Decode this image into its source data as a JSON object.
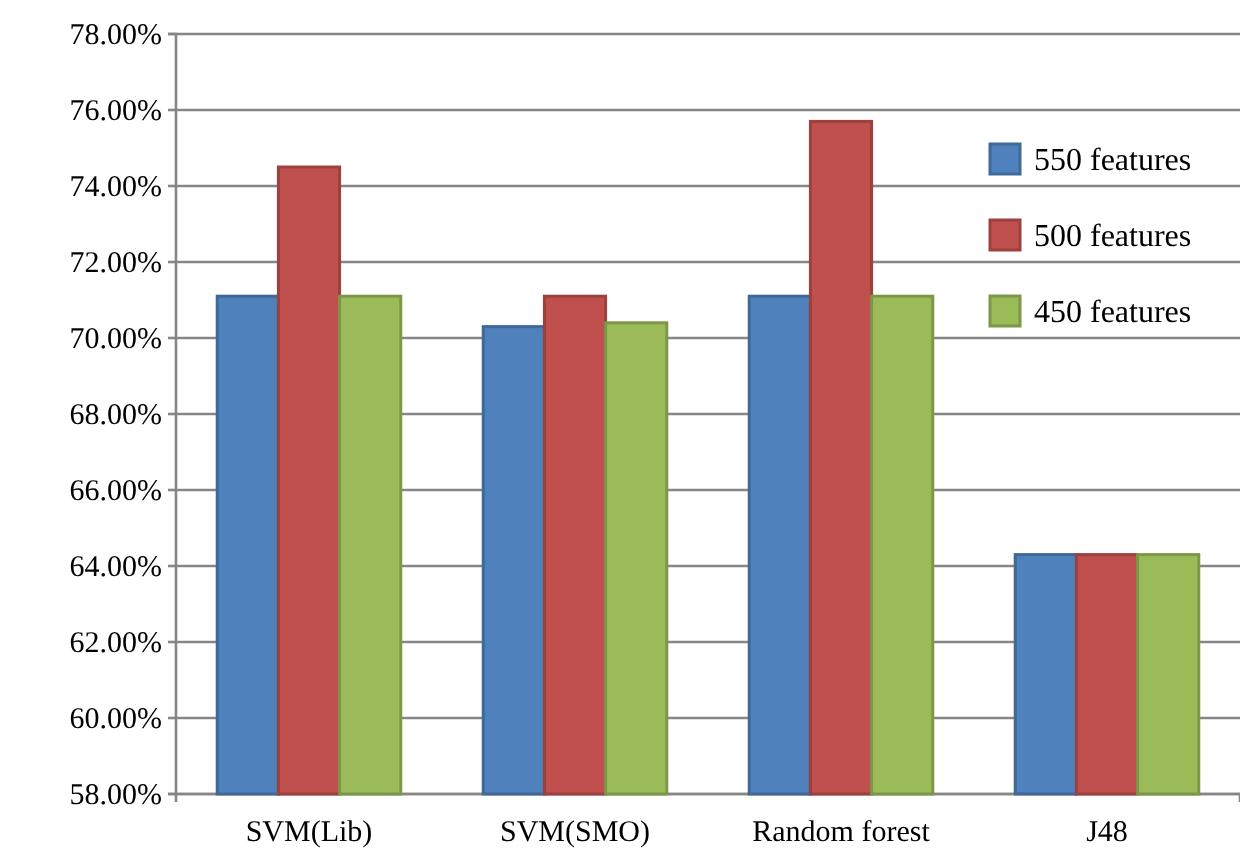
{
  "chart_data": {
    "type": "bar",
    "categories": [
      "SVM(Lib)",
      "SVM(SMO)",
      "Random forest",
      "J48"
    ],
    "series": [
      {
        "name": "550 features",
        "color": "#4f81bd",
        "values": [
          71.1,
          70.3,
          71.1,
          64.3
        ]
      },
      {
        "name": "500 features",
        "color": "#c0504d",
        "values": [
          74.5,
          71.1,
          75.7,
          64.3
        ]
      },
      {
        "name": "450 features",
        "color": "#9bbb59",
        "values": [
          71.1,
          70.4,
          71.1,
          64.3
        ]
      }
    ],
    "ylim": [
      58,
      78
    ],
    "yticks": [
      {
        "value": 58,
        "label": "58.00%"
      },
      {
        "value": 60,
        "label": "60.00%"
      },
      {
        "value": 62,
        "label": "62.00%"
      },
      {
        "value": 64,
        "label": "64.00%"
      },
      {
        "value": 66,
        "label": "66.00%"
      },
      {
        "value": 68,
        "label": "68.00%"
      },
      {
        "value": 70,
        "label": "70.00%"
      },
      {
        "value": 72,
        "label": "72.00%"
      },
      {
        "value": 74,
        "label": "74.00%"
      },
      {
        "value": 76,
        "label": "76.00%"
      },
      {
        "value": 78,
        "label": "78.00%"
      }
    ],
    "grid": "y",
    "legend": "right"
  }
}
